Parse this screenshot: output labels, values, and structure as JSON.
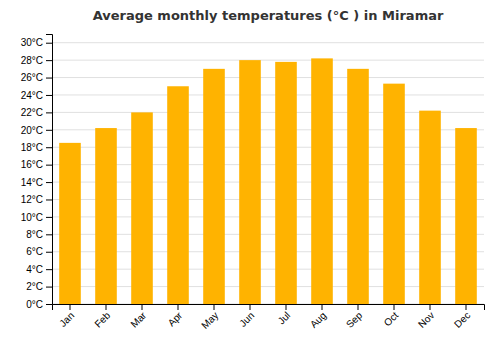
{
  "chart_data": {
    "type": "bar",
    "title": "Average monthly temperatures (°C ) in Miramar",
    "categories": [
      "Jan",
      "Feb",
      "Mar",
      "Apr",
      "May",
      "Jun",
      "Jul",
      "Aug",
      "Sep",
      "Oct",
      "Nov",
      "Dec"
    ],
    "values": [
      18.5,
      20.2,
      22.0,
      25.0,
      27.0,
      28.0,
      27.8,
      28.2,
      27.0,
      25.3,
      22.2,
      20.2
    ],
    "color": "#FFB300",
    "ylim": [
      0,
      31
    ],
    "yticks": [
      {
        "value": 0,
        "label": "0°C"
      },
      {
        "value": 2,
        "label": "2°C"
      },
      {
        "value": 4,
        "label": "4°C"
      },
      {
        "value": 6,
        "label": "6°C"
      },
      {
        "value": 8,
        "label": "8°C"
      },
      {
        "value": 10,
        "label": "10°C"
      },
      {
        "value": 12,
        "label": "12°C"
      },
      {
        "value": 14,
        "label": "14°C"
      },
      {
        "value": 16,
        "label": "16°C"
      },
      {
        "value": 18,
        "label": "18°C"
      },
      {
        "value": 20,
        "label": "20°C"
      },
      {
        "value": 22,
        "label": "22°C"
      },
      {
        "value": 24,
        "label": "24°C"
      },
      {
        "value": 26,
        "label": "26°C"
      },
      {
        "value": 28,
        "label": "28°C"
      },
      {
        "value": 30,
        "label": "30°C"
      }
    ],
    "grid": true
  }
}
